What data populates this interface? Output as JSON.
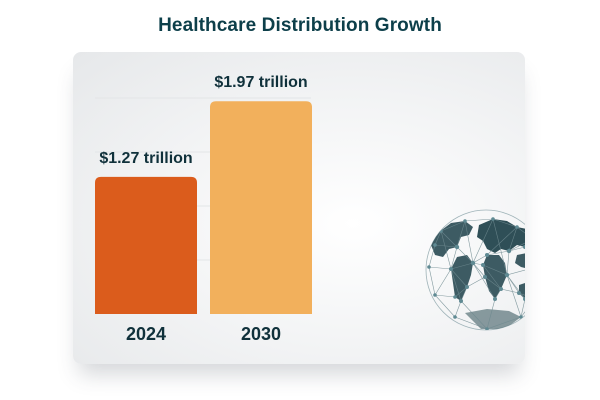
{
  "title": "Healthcare Distribution Growth",
  "chart_data": {
    "type": "bar",
    "title": "Healthcare Distribution Growth",
    "categories": [
      "2024",
      "2030"
    ],
    "values": [
      1.27,
      1.97
    ],
    "value_labels": [
      "$1.27 trillion",
      "$1.97 trillion"
    ],
    "xlabel": "",
    "ylabel": "",
    "ylim": [
      0,
      2.0
    ],
    "grid": true,
    "legend": "none",
    "colors": [
      "#db5c1c",
      "#f2b05c"
    ]
  },
  "colors": {
    "title": "#0d3f4a",
    "label": "#10313b",
    "grid": "#e3e5e7"
  },
  "decoration": {
    "icon": "globe-network-icon"
  }
}
